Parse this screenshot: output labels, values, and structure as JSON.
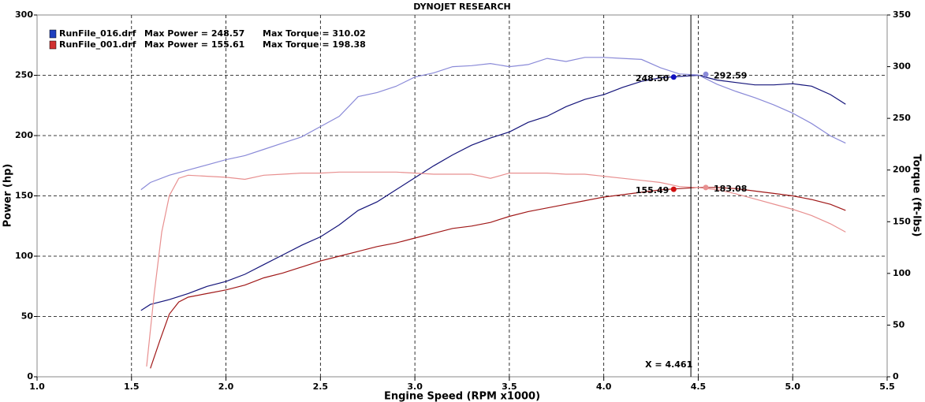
{
  "chart_data": {
    "type": "line",
    "title": "DYNOJET RESEARCH",
    "x_label": "Engine Speed (RPM x1000)",
    "y_label": "Power (hp)",
    "y2_label": "Torque (ft-lbs)",
    "xlim": [
      1.0,
      5.5
    ],
    "xticks": [
      {
        "value": 1.0,
        "label": "1.0"
      },
      1.5,
      {
        "value": 2.0,
        "label": "2.0"
      },
      2.5,
      {
        "value": 3.0,
        "label": "3.0"
      },
      3.5,
      {
        "value": 4.0,
        "label": "4.0"
      },
      4.5,
      {
        "value": 5.0,
        "label": "5.0"
      },
      5.5
    ],
    "ylim": [
      0,
      300
    ],
    "yticks": [
      0,
      50,
      100,
      150,
      200,
      250,
      300
    ],
    "y2lim": [
      0,
      350
    ],
    "y2ticks": [
      0,
      50,
      100,
      150,
      200,
      250,
      300,
      350
    ],
    "grid": true,
    "runs": [
      {
        "name": "RunFile_016.drf",
        "color": "#1f3fbf",
        "max_power": "Max Power = 248.57",
        "max_torque": "Max Torque = 310.02",
        "power": {
          "color": "#14147a",
          "x": [
            1.55,
            1.6,
            1.7,
            1.8,
            1.9,
            2.0,
            2.1,
            2.2,
            2.3,
            2.4,
            2.5,
            2.6,
            2.7,
            2.8,
            2.9,
            3.0,
            3.1,
            3.2,
            3.3,
            3.4,
            3.5,
            3.6,
            3.7,
            3.8,
            3.9,
            4.0,
            4.1,
            4.2,
            4.3,
            4.4,
            4.5,
            4.6,
            4.7,
            4.8,
            4.9,
            5.0,
            5.1,
            5.2,
            5.28
          ],
          "values": [
            55,
            60,
            64,
            69,
            75,
            79,
            85,
            93,
            101,
            109,
            116,
            126,
            138,
            145,
            155,
            165,
            175,
            184,
            192,
            198,
            203,
            211,
            216,
            224,
            230,
            234,
            240,
            245,
            248,
            249,
            250,
            246,
            244,
            242,
            242,
            243,
            241,
            234,
            226
          ]
        },
        "torque": {
          "color": "#8a8ad8",
          "axis": "y2",
          "x": [
            1.55,
            1.6,
            1.7,
            1.8,
            1.9,
            2.0,
            2.1,
            2.2,
            2.3,
            2.4,
            2.5,
            2.6,
            2.7,
            2.8,
            2.9,
            3.0,
            3.1,
            3.2,
            3.3,
            3.4,
            3.5,
            3.6,
            3.7,
            3.8,
            3.9,
            4.0,
            4.1,
            4.2,
            4.3,
            4.4,
            4.5,
            4.6,
            4.7,
            4.8,
            4.9,
            5.0,
            5.1,
            5.2,
            5.28
          ],
          "values": [
            181,
            188,
            195,
            200,
            205,
            210,
            214,
            220,
            226,
            232,
            242,
            252,
            271,
            275,
            281,
            290,
            294,
            300,
            301,
            303,
            300,
            302,
            308,
            305,
            309,
            309,
            308,
            307,
            299,
            293,
            292,
            283,
            276,
            270,
            263,
            255,
            245,
            233,
            226
          ]
        }
      },
      {
        "name": "RunFile_001.drf",
        "color": "#d03030",
        "max_power": "Max Power = 155.61",
        "max_torque": "Max Torque = 198.38",
        "power": {
          "color": "#a01818",
          "x": [
            1.6,
            1.65,
            1.7,
            1.75,
            1.8,
            1.9,
            2.0,
            2.1,
            2.2,
            2.3,
            2.4,
            2.5,
            2.6,
            2.7,
            2.8,
            2.9,
            3.0,
            3.1,
            3.2,
            3.3,
            3.4,
            3.5,
            3.6,
            3.7,
            3.8,
            3.9,
            4.0,
            4.1,
            4.2,
            4.3,
            4.4,
            4.5,
            4.6,
            4.7,
            4.8,
            4.9,
            5.0,
            5.1,
            5.2,
            5.28
          ],
          "values": [
            7,
            30,
            52,
            62,
            66,
            69,
            72,
            76,
            82,
            86,
            91,
            96,
            100,
            104,
            108,
            111,
            115,
            119,
            123,
            125,
            128,
            133,
            137,
            140,
            143,
            146,
            149,
            151,
            153,
            155,
            156,
            157,
            157,
            156,
            154,
            152,
            150,
            147,
            143,
            138
          ]
        },
        "torque": {
          "color": "#e89090",
          "axis": "y2",
          "x": [
            1.58,
            1.62,
            1.66,
            1.7,
            1.75,
            1.8,
            1.9,
            2.0,
            2.1,
            2.2,
            2.3,
            2.4,
            2.5,
            2.6,
            2.7,
            2.8,
            2.9,
            3.0,
            3.1,
            3.2,
            3.3,
            3.4,
            3.5,
            3.6,
            3.7,
            3.8,
            3.9,
            4.0,
            4.1,
            4.2,
            4.3,
            4.4,
            4.5,
            4.6,
            4.7,
            4.8,
            4.9,
            5.0,
            5.1,
            5.2,
            5.28
          ],
          "values": [
            10,
            80,
            140,
            175,
            192,
            195,
            194,
            193,
            191,
            195,
            196,
            197,
            197,
            198,
            198,
            198,
            198,
            197,
            196,
            196,
            196,
            192,
            197,
            197,
            197,
            196,
            196,
            194,
            192,
            190,
            188,
            184,
            183,
            181,
            177,
            172,
            167,
            162,
            156,
            148,
            140
          ]
        }
      }
    ],
    "annotations": [
      {
        "x": 4.37,
        "value": 248.5,
        "label": "248.50",
        "color": "#1010c0",
        "side": "left"
      },
      {
        "x": 4.54,
        "value": 292.59,
        "label": "292.59",
        "color": "#8a8ad8",
        "side": "right",
        "axis": "y2"
      },
      {
        "x": 4.37,
        "value": 155.49,
        "label": "155.49",
        "color": "#d01010",
        "side": "left"
      },
      {
        "x": 4.54,
        "value": 183.08,
        "label": "183.08",
        "color": "#e89090",
        "side": "right",
        "axis": "y2"
      }
    ],
    "cursor": {
      "x": 4.461,
      "label": "X = 4.461"
    }
  }
}
